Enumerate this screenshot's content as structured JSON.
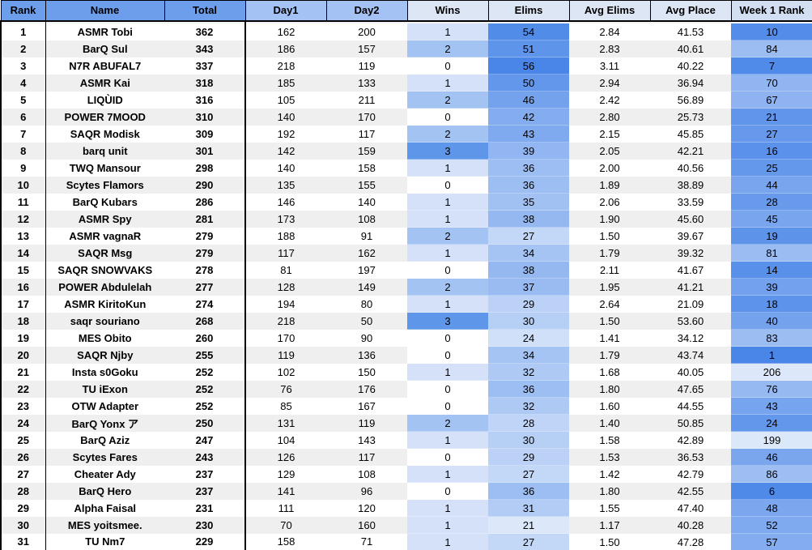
{
  "table": {
    "columns": [
      {
        "key": "rank",
        "label": "Rank"
      },
      {
        "key": "name",
        "label": "Name"
      },
      {
        "key": "total",
        "label": "Total"
      },
      {
        "key": "day1",
        "label": "Day1"
      },
      {
        "key": "day2",
        "label": "Day2"
      },
      {
        "key": "wins",
        "label": "Wins"
      },
      {
        "key": "elims",
        "label": "Elims"
      },
      {
        "key": "avg_elims",
        "label": "Avg Elims"
      },
      {
        "key": "avg_place",
        "label": "Avg Place"
      },
      {
        "key": "week1_rank",
        "label": "Week 1 Rank"
      }
    ],
    "rows": [
      {
        "rank": "1",
        "name": "ASMR Tobi",
        "total": "362",
        "day1": "162",
        "day2": "200",
        "wins": "1",
        "elims": "54",
        "avg_elims": "2.84",
        "avg_place": "41.53",
        "week1_rank": "10"
      },
      {
        "rank": "2",
        "name": "BarQ Sul",
        "total": "343",
        "day1": "186",
        "day2": "157",
        "wins": "2",
        "elims": "51",
        "avg_elims": "2.83",
        "avg_place": "40.61",
        "week1_rank": "84"
      },
      {
        "rank": "3",
        "name": "N7R ABUFAL7",
        "total": "337",
        "day1": "218",
        "day2": "119",
        "wins": "0",
        "elims": "56",
        "avg_elims": "3.11",
        "avg_place": "40.22",
        "week1_rank": "7"
      },
      {
        "rank": "4",
        "name": "ASMR Kai",
        "total": "318",
        "day1": "185",
        "day2": "133",
        "wins": "1",
        "elims": "50",
        "avg_elims": "2.94",
        "avg_place": "36.94",
        "week1_rank": "70"
      },
      {
        "rank": "5",
        "name": "LIQÙID",
        "total": "316",
        "day1": "105",
        "day2": "211",
        "wins": "2",
        "elims": "46",
        "avg_elims": "2.42",
        "avg_place": "56.89",
        "week1_rank": "67"
      },
      {
        "rank": "6",
        "name": "POWER 7MOOD",
        "total": "310",
        "day1": "140",
        "day2": "170",
        "wins": "0",
        "elims": "42",
        "avg_elims": "2.80",
        "avg_place": "25.73",
        "week1_rank": "21"
      },
      {
        "rank": "7",
        "name": "SAQR Modisk",
        "total": "309",
        "day1": "192",
        "day2": "117",
        "wins": "2",
        "elims": "43",
        "avg_elims": "2.15",
        "avg_place": "45.85",
        "week1_rank": "27"
      },
      {
        "rank": "8",
        "name": "barq unit",
        "total": "301",
        "day1": "142",
        "day2": "159",
        "wins": "3",
        "elims": "39",
        "avg_elims": "2.05",
        "avg_place": "42.21",
        "week1_rank": "16"
      },
      {
        "rank": "9",
        "name": "TWQ Mansour",
        "total": "298",
        "day1": "140",
        "day2": "158",
        "wins": "1",
        "elims": "36",
        "avg_elims": "2.00",
        "avg_place": "40.56",
        "week1_rank": "25"
      },
      {
        "rank": "10",
        "name": "Scytes Flamors",
        "total": "290",
        "day1": "135",
        "day2": "155",
        "wins": "0",
        "elims": "36",
        "avg_elims": "1.89",
        "avg_place": "38.89",
        "week1_rank": "44"
      },
      {
        "rank": "11",
        "name": "BarQ Kubars",
        "total": "286",
        "day1": "146",
        "day2": "140",
        "wins": "1",
        "elims": "35",
        "avg_elims": "2.06",
        "avg_place": "33.59",
        "week1_rank": "28"
      },
      {
        "rank": "12",
        "name": "ASMR Spy",
        "total": "281",
        "day1": "173",
        "day2": "108",
        "wins": "1",
        "elims": "38",
        "avg_elims": "1.90",
        "avg_place": "45.60",
        "week1_rank": "45"
      },
      {
        "rank": "13",
        "name": "ASMR vagnaR",
        "total": "279",
        "day1": "188",
        "day2": "91",
        "wins": "2",
        "elims": "27",
        "avg_elims": "1.50",
        "avg_place": "39.67",
        "week1_rank": "19"
      },
      {
        "rank": "14",
        "name": "SAQR Msg",
        "total": "279",
        "day1": "117",
        "day2": "162",
        "wins": "1",
        "elims": "34",
        "avg_elims": "1.79",
        "avg_place": "39.32",
        "week1_rank": "81"
      },
      {
        "rank": "15",
        "name": "SAQR SNOWVAKS",
        "total": "278",
        "day1": "81",
        "day2": "197",
        "wins": "0",
        "elims": "38",
        "avg_elims": "2.11",
        "avg_place": "41.67",
        "week1_rank": "14"
      },
      {
        "rank": "16",
        "name": "POWER Abdulelah",
        "total": "277",
        "day1": "128",
        "day2": "149",
        "wins": "2",
        "elims": "37",
        "avg_elims": "1.95",
        "avg_place": "41.21",
        "week1_rank": "39"
      },
      {
        "rank": "17",
        "name": "ASMR KiritoKun",
        "total": "274",
        "day1": "194",
        "day2": "80",
        "wins": "1",
        "elims": "29",
        "avg_elims": "2.64",
        "avg_place": "21.09",
        "week1_rank": "18"
      },
      {
        "rank": "18",
        "name": "saqr souriano",
        "total": "268",
        "day1": "218",
        "day2": "50",
        "wins": "3",
        "elims": "30",
        "avg_elims": "1.50",
        "avg_place": "53.60",
        "week1_rank": "40"
      },
      {
        "rank": "19",
        "name": "MES Obito",
        "total": "260",
        "day1": "170",
        "day2": "90",
        "wins": "0",
        "elims": "24",
        "avg_elims": "1.41",
        "avg_place": "34.12",
        "week1_rank": "83"
      },
      {
        "rank": "20",
        "name": "SAQR Njby",
        "total": "255",
        "day1": "119",
        "day2": "136",
        "wins": "0",
        "elims": "34",
        "avg_elims": "1.79",
        "avg_place": "43.74",
        "week1_rank": "1"
      },
      {
        "rank": "21",
        "name": "Insta s0Goku",
        "total": "252",
        "day1": "102",
        "day2": "150",
        "wins": "1",
        "elims": "32",
        "avg_elims": "1.68",
        "avg_place": "40.05",
        "week1_rank": "206"
      },
      {
        "rank": "22",
        "name": "TU iExon",
        "total": "252",
        "day1": "76",
        "day2": "176",
        "wins": "0",
        "elims": "36",
        "avg_elims": "1.80",
        "avg_place": "47.65",
        "week1_rank": "76"
      },
      {
        "rank": "23",
        "name": "OTW Adapter",
        "total": "252",
        "day1": "85",
        "day2": "167",
        "wins": "0",
        "elims": "32",
        "avg_elims": "1.60",
        "avg_place": "44.55",
        "week1_rank": "43"
      },
      {
        "rank": "24",
        "name": "BarQ Yonx ア",
        "total": "250",
        "day1": "131",
        "day2": "119",
        "wins": "2",
        "elims": "28",
        "avg_elims": "1.40",
        "avg_place": "50.85",
        "week1_rank": "24"
      },
      {
        "rank": "25",
        "name": "BarQ Aziz",
        "total": "247",
        "day1": "104",
        "day2": "143",
        "wins": "1",
        "elims": "30",
        "avg_elims": "1.58",
        "avg_place": "42.89",
        "week1_rank": "199"
      },
      {
        "rank": "26",
        "name": "Scytes Fares",
        "total": "243",
        "day1": "126",
        "day2": "117",
        "wins": "0",
        "elims": "29",
        "avg_elims": "1.53",
        "avg_place": "36.53",
        "week1_rank": "46"
      },
      {
        "rank": "27",
        "name": "Cheater Ady",
        "total": "237",
        "day1": "129",
        "day2": "108",
        "wins": "1",
        "elims": "27",
        "avg_elims": "1.42",
        "avg_place": "42.79",
        "week1_rank": "86"
      },
      {
        "rank": "28",
        "name": "BarQ Hero",
        "total": "237",
        "day1": "141",
        "day2": "96",
        "wins": "0",
        "elims": "36",
        "avg_elims": "1.80",
        "avg_place": "42.55",
        "week1_rank": "6"
      },
      {
        "rank": "29",
        "name": "Alpha Faisal",
        "total": "231",
        "day1": "111",
        "day2": "120",
        "wins": "1",
        "elims": "31",
        "avg_elims": "1.55",
        "avg_place": "47.40",
        "week1_rank": "48"
      },
      {
        "rank": "30",
        "name": "MES yoitsmee.",
        "total": "230",
        "day1": "70",
        "day2": "160",
        "wins": "1",
        "elims": "21",
        "avg_elims": "1.17",
        "avg_place": "40.28",
        "week1_rank": "52"
      },
      {
        "rank": "31",
        "name": "TU Nm7",
        "total": "229",
        "day1": "158",
        "day2": "71",
        "wins": "1",
        "elims": "27",
        "avg_elims": "1.50",
        "avg_place": "47.28",
        "week1_rank": "57"
      }
    ]
  },
  "colors": {
    "header_strong_blue": "#6d9eeb",
    "header_medium_blue": "#a4c2f4",
    "header_pale_blue": "#dde6f5",
    "header_week1_blue": "#d2def1",
    "row_stripe_gray": "#efefef",
    "scale_dark_blue": "#4a86e8",
    "scale_light_blue": "#dce8fa",
    "wins_colors": {
      "0": "#ffffff",
      "1": "#d4e1f8",
      "2": "#a3c3f3",
      "3": "#5e96e9"
    },
    "border_black": "#000000"
  },
  "scales": {
    "elims": {
      "min": 21,
      "max": 56
    },
    "week1_rank": {
      "min": 1,
      "max": 206,
      "reversed": true,
      "curve_exponent": 1.6
    },
    "wins": {
      "discrete": [
        0,
        1,
        2,
        3
      ]
    }
  }
}
